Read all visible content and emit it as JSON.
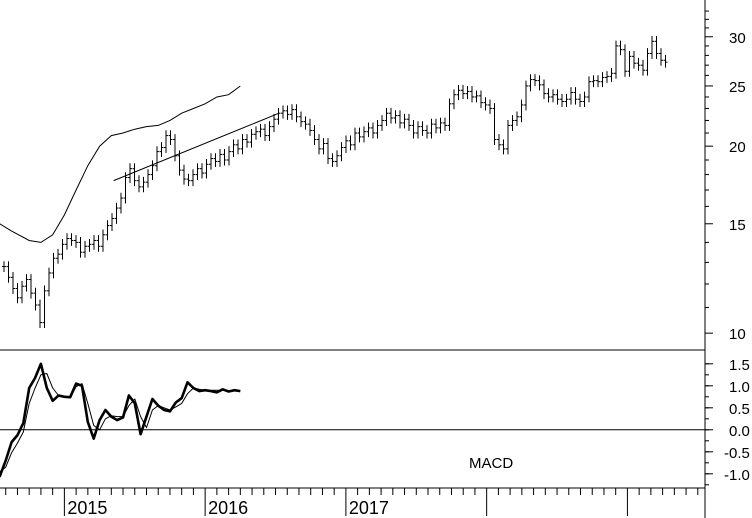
{
  "chart_data": [
    {
      "type": "ohlc",
      "scale": "log",
      "ylim": [
        10,
        33
      ],
      "y_ticks": [
        "10",
        "15",
        "20",
        "25",
        "30"
      ],
      "x_ticks": [
        "2015",
        "2016",
        "2017"
      ],
      "start_month": "2014-07",
      "weekly_close": [
        12.8,
        12.3,
        11.8,
        11.4,
        11.9,
        12.2,
        11.6,
        11.1,
        10.4,
        11.7,
        12.5,
        13.2,
        13.4,
        13.9,
        14.2,
        14.1,
        14.0,
        13.5,
        13.8,
        13.9,
        14.1,
        13.8,
        14.4,
        14.9,
        15.3,
        15.9,
        16.5,
        17.8,
        18.4,
        17.6,
        17.2,
        17.5,
        18.0,
        18.6,
        19.6,
        19.9,
        20.8,
        20.5,
        19.3,
        18.3,
        17.7,
        17.6,
        18.0,
        18.4,
        18.1,
        18.7,
        19.1,
        18.9,
        19.4,
        19.0,
        19.6,
        20.1,
        19.8,
        20.5,
        20.3,
        20.9,
        21.1,
        21.3,
        20.8,
        21.5,
        22.1,
        22.6,
        22.8,
        22.5,
        22.9,
        22.3,
        21.9,
        21.7,
        21.2,
        20.5,
        19.8,
        20.2,
        19.1,
        18.9,
        19.3,
        19.9,
        20.4,
        20.1,
        21.0,
        20.7,
        21.1,
        21.4,
        21.0,
        21.6,
        22.0,
        22.6,
        22.2,
        22.4,
        21.8,
        22.1,
        21.6,
        21.0,
        21.5,
        21.2,
        21.0,
        21.7,
        21.4,
        21.8,
        21.6,
        23.4,
        24.2,
        24.6,
        24.3,
        24.5,
        24.0,
        24.1,
        23.5,
        23.3,
        23.0,
        20.5,
        20.1,
        19.8,
        21.6,
        22.0,
        22.3,
        23.3,
        25.0,
        25.6,
        25.5,
        25.1,
        24.3,
        24.0,
        24.2,
        23.8,
        23.6,
        23.8,
        24.4,
        23.8,
        23.6,
        24.0,
        25.4,
        25.5,
        25.4,
        25.8,
        25.9,
        26.2,
        29.0,
        28.6,
        26.4,
        27.9,
        27.2,
        27.0,
        26.5,
        28.2,
        29.5,
        28.2,
        27.5,
        27.3
      ],
      "moving_average": [
        [
          -2,
          15.8
        ],
        [
          0,
          15.2
        ],
        [
          1.5,
          14.6
        ],
        [
          3,
          14.1
        ],
        [
          4,
          14.0
        ],
        [
          5,
          14.4
        ],
        [
          6,
          15.5
        ],
        [
          7,
          17.0
        ],
        [
          8,
          18.6
        ],
        [
          9,
          20.0
        ],
        [
          10,
          20.8
        ],
        [
          11,
          21.0
        ],
        [
          12,
          21.3
        ],
        [
          13,
          21.5
        ],
        [
          14,
          21.6
        ],
        [
          14.5,
          21.8
        ],
        [
          15,
          22.0
        ],
        [
          16,
          22.6
        ],
        [
          17,
          23.0
        ],
        [
          18,
          23.4
        ],
        [
          19,
          24.0
        ],
        [
          20,
          24.2
        ],
        [
          21,
          25.0
        ]
      ],
      "trendline": [
        [
          10.2,
          17.6
        ],
        [
          24.3,
          22.6
        ]
      ]
    },
    {
      "type": "line",
      "title": "MACD",
      "ylim": [
        -1.3,
        1.7
      ],
      "y_ticks": [
        "1.5",
        "1.0",
        "0.5",
        "0.0",
        "-0.5",
        "-1.0"
      ],
      "zero_line": true,
      "series": [
        {
          "weight": "bold",
          "x": [
            -0.5,
            0,
            0.5,
            1,
            1.5,
            2,
            2.5,
            3,
            3.5,
            4,
            4.5,
            5,
            5.5,
            6,
            6.5,
            7,
            7.5,
            8,
            8.5,
            9,
            9.5,
            10,
            10.5,
            11,
            11.5,
            12,
            12.5,
            13,
            13.5,
            14,
            14.5,
            15,
            15.5,
            16,
            16.5,
            17,
            17.5,
            18,
            18.5,
            19,
            19.5,
            20,
            20.5,
            21
          ],
          "y": [
            -0.75,
            -0.9,
            -1.05,
            -0.7,
            -0.28,
            -0.12,
            0.15,
            0.95,
            1.18,
            1.5,
            0.95,
            0.66,
            0.78,
            0.75,
            0.74,
            1.05,
            1.0,
            0.18,
            -0.2,
            0.22,
            0.45,
            0.3,
            0.22,
            0.28,
            0.78,
            0.6,
            -0.1,
            0.3,
            0.7,
            0.55,
            0.45,
            0.42,
            0.62,
            0.72,
            1.08,
            0.95,
            0.88,
            0.9,
            0.88,
            0.85,
            0.92,
            0.87,
            0.9,
            0.88
          ]
        },
        {
          "weight": "thin",
          "x": [
            -0.5,
            0,
            0.5,
            1,
            1.5,
            2,
            2.5,
            3,
            3.5,
            4,
            4.5,
            5,
            5.5,
            6,
            6.5,
            7,
            7.5,
            8,
            8.5,
            9,
            9.5,
            10,
            10.5,
            11,
            11.5,
            12,
            12.5,
            13,
            13.5,
            14,
            14.5,
            15,
            15.5,
            16,
            16.5,
            17,
            17.5,
            18,
            18.5,
            19,
            19.5,
            20,
            20.5,
            21
          ],
          "y": [
            -0.55,
            -0.7,
            -0.95,
            -0.85,
            -0.52,
            -0.3,
            -0.05,
            0.6,
            0.95,
            1.25,
            1.28,
            0.95,
            0.78,
            0.76,
            0.74,
            0.98,
            1.05,
            0.6,
            0.1,
            0.0,
            0.25,
            0.32,
            0.3,
            0.3,
            0.55,
            0.7,
            0.3,
            0.05,
            0.45,
            0.55,
            0.5,
            0.45,
            0.52,
            0.6,
            0.82,
            0.95,
            0.92,
            0.9,
            0.9,
            0.9,
            0.9,
            0.88,
            0.89,
            0.88
          ]
        }
      ]
    }
  ]
}
